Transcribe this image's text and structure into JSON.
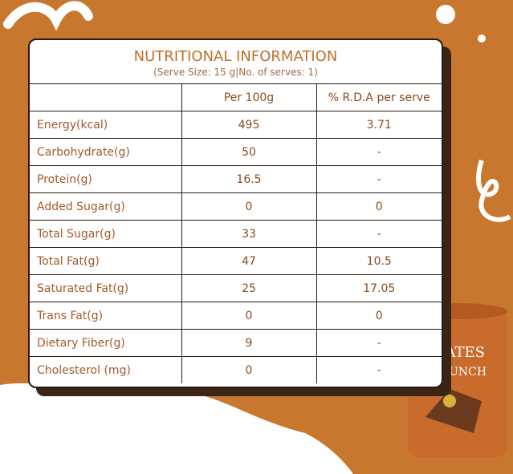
{
  "header": {
    "title": "NUTRITIONAL INFORMATION",
    "subtitle": "(Serve Size: 15 g|No. of serves: 1)"
  },
  "table": {
    "columns": [
      "Per 100g",
      "% R.D.A per serve"
    ],
    "rows": [
      [
        "Energy(kcal)",
        "495",
        "3.71"
      ],
      [
        "Carbohydrate(g)",
        "50",
        "-"
      ],
      [
        "Protein(g)",
        "16.5",
        "-"
      ],
      [
        "Added Sugar(g)",
        "0",
        "0"
      ],
      [
        "Total Sugar(g)",
        "33",
        "-"
      ],
      [
        "Total Fat(g)",
        "47",
        "10.5"
      ],
      [
        "Saturated Fat(g)",
        "25",
        "17.05"
      ],
      [
        "Trans Fat(g)",
        "0",
        "0"
      ],
      [
        "Dietary Fiber(g)",
        "9",
        "-"
      ],
      [
        "Cholesterol (mg)",
        "0",
        "-"
      ]
    ]
  },
  "product": {
    "name_line1": "DATES",
    "name_line2": "CRUNCH"
  }
}
